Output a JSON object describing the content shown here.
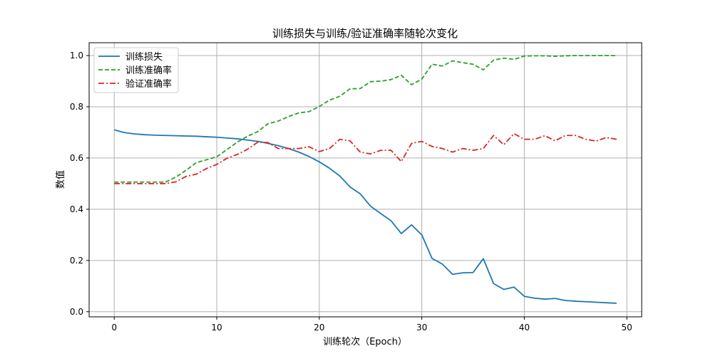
{
  "chart_data": {
    "type": "line",
    "title": "训练损失与训练/验证准确率随轮次变化",
    "xlabel": "训练轮次（Epoch）",
    "ylabel": "数值",
    "xlim": [
      -2.45,
      51.45
    ],
    "ylim": [
      -0.02,
      1.05
    ],
    "xticks": [
      0,
      10,
      20,
      30,
      40,
      50
    ],
    "yticks": [
      0.0,
      0.2,
      0.4,
      0.6,
      0.8,
      1.0
    ],
    "xtick_labels": [
      "0",
      "10",
      "20",
      "30",
      "40",
      "50"
    ],
    "ytick_labels": [
      "0.0",
      "0.2",
      "0.4",
      "0.6",
      "0.8",
      "1.0"
    ],
    "grid": true,
    "legend_position": "top-left",
    "x": [
      0,
      1,
      2,
      3,
      4,
      5,
      6,
      7,
      8,
      9,
      10,
      11,
      12,
      13,
      14,
      15,
      16,
      17,
      18,
      19,
      20,
      21,
      22,
      23,
      24,
      25,
      26,
      27,
      28,
      29,
      30,
      31,
      32,
      33,
      34,
      35,
      36,
      37,
      38,
      39,
      40,
      41,
      42,
      43,
      44,
      45,
      46,
      47,
      48,
      49
    ],
    "series": [
      {
        "name": "训练损失",
        "color": "#1f77b4",
        "style": "solid",
        "values": [
          0.71,
          0.699,
          0.694,
          0.691,
          0.689,
          0.688,
          0.687,
          0.686,
          0.685,
          0.683,
          0.681,
          0.678,
          0.675,
          0.67,
          0.665,
          0.657,
          0.648,
          0.637,
          0.623,
          0.606,
          0.585,
          0.56,
          0.53,
          0.487,
          0.46,
          0.412,
          0.383,
          0.355,
          0.305,
          0.339,
          0.3,
          0.208,
          0.186,
          0.146,
          0.152,
          0.153,
          0.207,
          0.11,
          0.087,
          0.096,
          0.06,
          0.053,
          0.049,
          0.052,
          0.044,
          0.041,
          0.039,
          0.037,
          0.035,
          0.033
        ]
      },
      {
        "name": "训练准确率",
        "color": "#2ca02c",
        "style": "dashed",
        "values": [
          0.506,
          0.506,
          0.506,
          0.506,
          0.506,
          0.506,
          0.525,
          0.552,
          0.582,
          0.593,
          0.605,
          0.633,
          0.662,
          0.685,
          0.703,
          0.734,
          0.744,
          0.762,
          0.776,
          0.781,
          0.801,
          0.826,
          0.841,
          0.87,
          0.871,
          0.898,
          0.9,
          0.906,
          0.923,
          0.886,
          0.908,
          0.966,
          0.959,
          0.979,
          0.972,
          0.966,
          0.944,
          0.982,
          0.99,
          0.985,
          0.998,
          0.999,
          0.999,
          0.997,
          0.999,
          1.0,
          1.0,
          1.0,
          1.0,
          1.0
        ]
      },
      {
        "name": "验证准确率",
        "color": "#d62728",
        "style": "dashdot",
        "values": [
          0.5,
          0.5,
          0.5,
          0.5,
          0.5,
          0.5,
          0.507,
          0.528,
          0.537,
          0.559,
          0.575,
          0.599,
          0.614,
          0.634,
          0.662,
          0.66,
          0.637,
          0.637,
          0.637,
          0.644,
          0.625,
          0.637,
          0.673,
          0.667,
          0.623,
          0.616,
          0.63,
          0.63,
          0.586,
          0.657,
          0.665,
          0.645,
          0.637,
          0.623,
          0.637,
          0.63,
          0.637,
          0.688,
          0.652,
          0.695,
          0.673,
          0.673,
          0.687,
          0.667,
          0.688,
          0.688,
          0.673,
          0.666,
          0.68,
          0.673
        ]
      }
    ]
  }
}
